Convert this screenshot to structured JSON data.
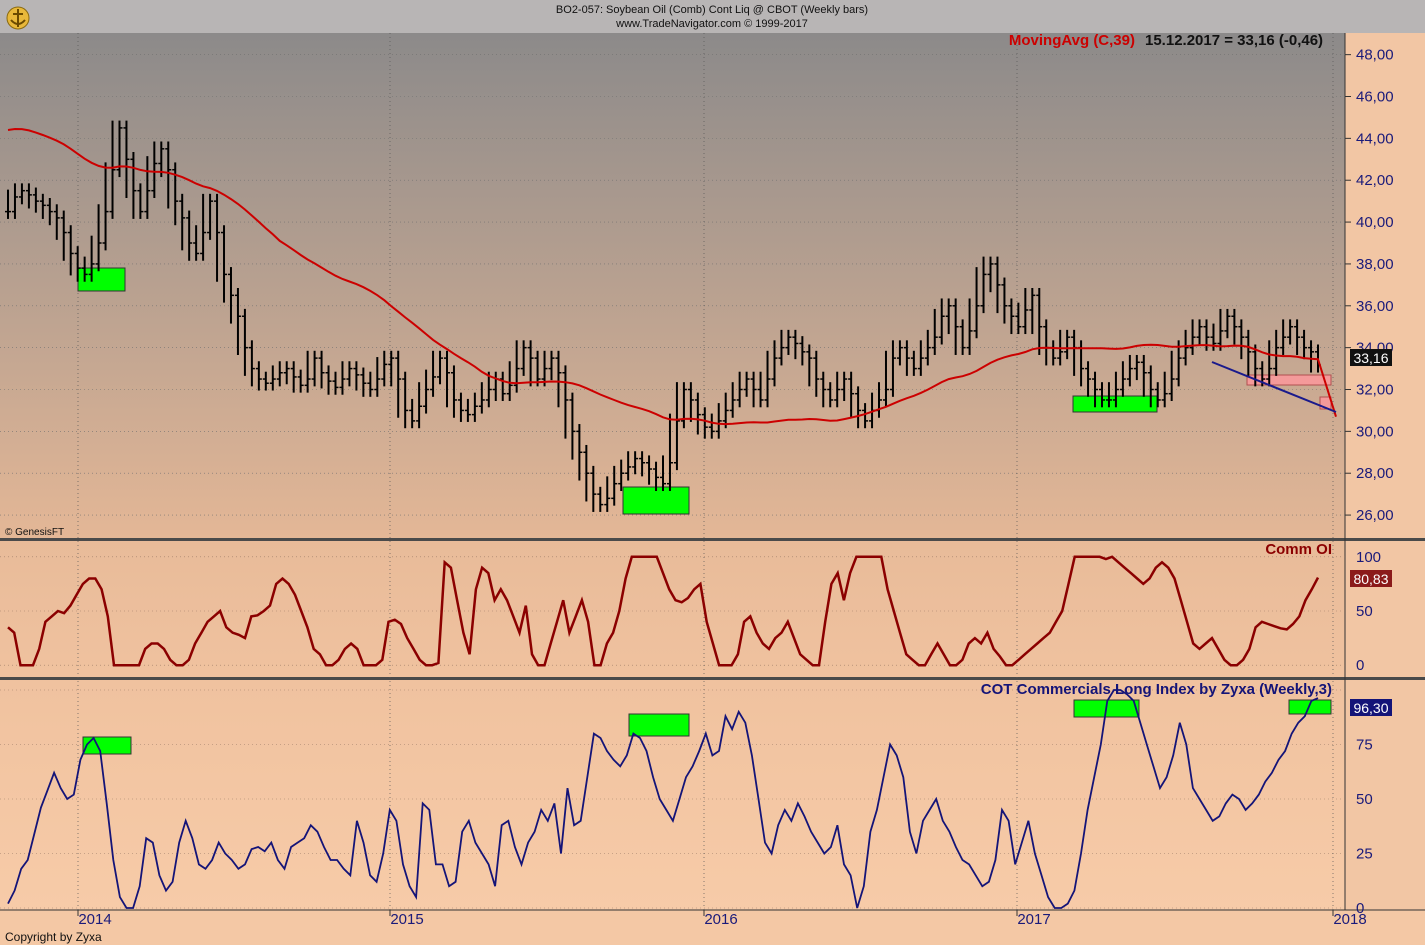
{
  "header": {
    "title": "BO2-057:  Soybean Oil (Comb) Cont Liq @ CBOT  (Weekly bars)",
    "subtitle": "www.TradeNavigator.com © 1999-2017"
  },
  "watermark": "© GenesisFT",
  "footer": "Copyright by Zyxa",
  "colors": {
    "price_bars": "#000000",
    "moving_avg": "#cc0000",
    "comm_oi": "#8b0000",
    "cot_index": "#141478",
    "highlight_green": "#00ff00",
    "highlight_pink": "#f49a9a",
    "trendline": "#1a1a8c"
  },
  "chart_data": [
    {
      "type": "bar",
      "subtype": "ohlc-weekly",
      "indicator_label": "MovingAvg (C,39)",
      "readout": "15.12.2017 = 33,16 (-0,46)",
      "last_value_label": "33,16",
      "ylim": [
        25,
        48.7
      ],
      "y_ticks": [
        "26,00",
        "28,00",
        "30,00",
        "32,00",
        "34,00",
        "36,00",
        "38,00",
        "40,00",
        "42,00",
        "44,00",
        "46,00",
        "48,00"
      ],
      "x_ticks": [
        "2014",
        "2015",
        "2016",
        "2017",
        "2018"
      ],
      "grid": true,
      "close": [
        40.5,
        41.2,
        41.5,
        41.3,
        41.0,
        40.8,
        40.5,
        40.2,
        39.5,
        38.5,
        37.8,
        37.5,
        38.0,
        39.0,
        40.5,
        42.5,
        44.5,
        43.0,
        41.5,
        40.5,
        41.5,
        42.8,
        43.5,
        42.5,
        41.0,
        40.2,
        39.0,
        38.5,
        39.5,
        41.0,
        39.5,
        37.5,
        36.5,
        35.5,
        34.0,
        33.0,
        32.5,
        32.3,
        32.5,
        32.8,
        33.0,
        32.6,
        32.2,
        32.5,
        33.5,
        32.8,
        32.4,
        32.1,
        32.5,
        33.0,
        32.7,
        32.3,
        32.0,
        32.5,
        33.2,
        33.5,
        32.5,
        31.0,
        30.5,
        31.2,
        32.0,
        32.6,
        33.5,
        32.8,
        31.5,
        31.0,
        30.8,
        31.2,
        31.5,
        32.0,
        32.5,
        31.8,
        32.2,
        33.0,
        34.0,
        33.5,
        32.5,
        33.0,
        33.5,
        32.8,
        31.5,
        30.0,
        29.0,
        28.0,
        27.0,
        26.5,
        26.8,
        27.5,
        28.0,
        28.3,
        28.7,
        28.5,
        28.2,
        27.8,
        27.5,
        28.5,
        30.5,
        32.0,
        31.5,
        30.8,
        30.2,
        30.0,
        30.5,
        31.0,
        31.5,
        32.0,
        32.5,
        32.0,
        31.5,
        32.5,
        33.5,
        34.0,
        34.5,
        34.2,
        33.8,
        33.5,
        32.5,
        32.0,
        31.5,
        32.0,
        32.5,
        31.8,
        31.0,
        30.5,
        31.0,
        31.5,
        32.0,
        33.5,
        34.0,
        33.5,
        33.0,
        33.5,
        34.0,
        34.5,
        35.5,
        36.0,
        35.0,
        34.0,
        34.8,
        36.0,
        37.5,
        38.0,
        37.0,
        36.0,
        35.5,
        35.0,
        35.8,
        36.5,
        35.0,
        34.0,
        33.5,
        33.8,
        34.5,
        34.0,
        33.0,
        32.5,
        32.0,
        31.5,
        31.5,
        32.0,
        32.5,
        33.0,
        33.3,
        32.8,
        32.0,
        31.5,
        31.8,
        32.5,
        33.5,
        34.0,
        34.5,
        35.0,
        34.5,
        34.2,
        34.8,
        35.5,
        35.0,
        34.5,
        33.8,
        33.0,
        32.5,
        33.0,
        34.0,
        34.5,
        35.0,
        34.5,
        34.0,
        33.8,
        33.16
      ]
    },
    {
      "type": "line",
      "title": "Comm OI",
      "last_value_label": "80,83",
      "ylim": [
        -10,
        110
      ],
      "y_ticks": [
        "0",
        "50",
        "100"
      ],
      "x": "weekly, late 2013 to Dec 2017",
      "values": [
        35,
        30,
        0,
        0,
        0,
        15,
        40,
        45,
        50,
        48,
        55,
        65,
        75,
        80,
        80,
        70,
        45,
        0,
        0,
        0,
        0,
        0,
        15,
        20,
        20,
        15,
        5,
        0,
        0,
        5,
        20,
        30,
        40,
        45,
        50,
        35,
        30,
        28,
        25,
        45,
        46,
        50,
        55,
        75,
        80,
        75,
        65,
        50,
        35,
        15,
        10,
        0,
        0,
        5,
        15,
        20,
        15,
        0,
        0,
        0,
        5,
        40,
        42,
        38,
        25,
        15,
        5,
        0,
        0,
        2,
        95,
        90,
        60,
        30,
        10,
        70,
        90,
        85,
        60,
        70,
        60,
        45,
        30,
        55,
        10,
        0,
        0,
        20,
        40,
        60,
        30,
        45,
        60,
        40,
        0,
        0,
        20,
        30,
        50,
        80,
        100,
        100,
        100,
        100,
        100,
        85,
        70,
        60,
        58,
        62,
        70,
        75,
        40,
        20,
        0,
        0,
        0,
        10,
        40,
        45,
        30,
        20,
        15,
        25,
        30,
        40,
        25,
        10,
        5,
        0,
        0,
        40,
        75,
        85,
        60,
        85,
        100,
        100,
        100,
        100,
        100,
        70,
        50,
        30,
        10,
        5,
        0,
        0,
        10,
        20,
        10,
        0,
        0,
        5,
        20,
        25,
        20,
        30,
        15,
        8,
        0,
        0,
        5,
        10,
        15,
        20,
        25,
        30,
        40,
        50,
        75,
        100,
        100,
        100,
        100,
        100,
        98,
        100,
        95,
        90,
        85,
        80,
        75,
        80,
        90,
        95,
        90,
        80,
        60,
        40,
        20,
        15,
        20,
        25,
        15,
        5,
        0,
        0,
        5,
        15,
        35,
        40,
        38,
        36,
        34,
        33,
        38,
        45,
        60,
        70,
        80.83
      ]
    },
    {
      "type": "line",
      "title": "COT Commercials Long Index by Zyxa (Weekly,3)",
      "last_value_label": "96,30",
      "ylim": [
        0,
        100
      ],
      "y_ticks": [
        "0",
        "25",
        "50",
        "75",
        "100"
      ],
      "x": "weekly, late 2013 to Dec 2017",
      "values": [
        2,
        8,
        18,
        22,
        34,
        46,
        54,
        62,
        55,
        50,
        52,
        68,
        75,
        78,
        72,
        48,
        22,
        5,
        0,
        0,
        10,
        32,
        30,
        15,
        8,
        12,
        30,
        40,
        32,
        20,
        18,
        22,
        30,
        25,
        22,
        18,
        20,
        27,
        28,
        26,
        30,
        22,
        18,
        28,
        30,
        32,
        38,
        35,
        28,
        22,
        22,
        18,
        15,
        40,
        30,
        15,
        12,
        25,
        45,
        40,
        20,
        10,
        5,
        48,
        45,
        20,
        20,
        10,
        12,
        35,
        40,
        30,
        25,
        20,
        10,
        38,
        40,
        28,
        20,
        30,
        35,
        45,
        40,
        48,
        25,
        55,
        38,
        40,
        60,
        80,
        78,
        72,
        68,
        65,
        70,
        80,
        78,
        72,
        60,
        50,
        45,
        40,
        50,
        60,
        65,
        72,
        80,
        70,
        72,
        88,
        82,
        90,
        85,
        70,
        50,
        30,
        25,
        38,
        45,
        40,
        48,
        42,
        35,
        30,
        25,
        28,
        38,
        20,
        15,
        0,
        10,
        35,
        45,
        60,
        75,
        70,
        60,
        35,
        25,
        40,
        45,
        50,
        40,
        35,
        28,
        22,
        20,
        15,
        10,
        12,
        22,
        45,
        40,
        20,
        30,
        40,
        25,
        15,
        5,
        0,
        0,
        2,
        8,
        25,
        45,
        60,
        75,
        95,
        100,
        100,
        98,
        95,
        85,
        75,
        65,
        55,
        60,
        70,
        85,
        75,
        55,
        50,
        45,
        40,
        42,
        48,
        52,
        50,
        45,
        48,
        52,
        58,
        62,
        68,
        72,
        80,
        85,
        88,
        95,
        96.3
      ]
    }
  ]
}
